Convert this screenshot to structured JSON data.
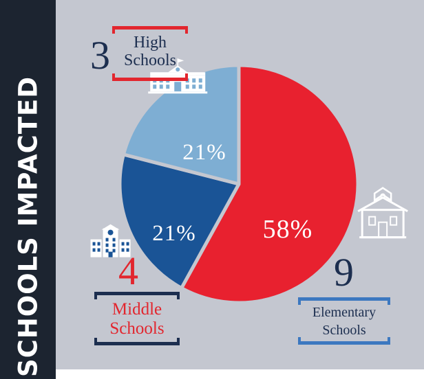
{
  "side_title": "SCHOOLS IMPACTED",
  "colors": {
    "elementary": "#e8212f",
    "middle": "#1a5496",
    "high": "#7eaed3",
    "navy": "#1c2e4f",
    "red_text": "#e2262e",
    "blue_bracket": "#3c78c0"
  },
  "chart_data": {
    "type": "pie",
    "slices": [
      {
        "label": "Elementary Schools",
        "count": "9",
        "value": 58,
        "percent_label": "58%",
        "color": "#e8212f",
        "icon": "schoolhouse-icon"
      },
      {
        "label": "Middle Schools",
        "count": "4",
        "value": 21,
        "percent_label": "21%",
        "color": "#1a5496",
        "icon": "middle-school-building-icon"
      },
      {
        "label": "High Schools",
        "count": "3",
        "value": 21,
        "percent_label": "21%",
        "color": "#7eaed3",
        "icon": "high-school-building-icon"
      }
    ]
  },
  "callouts": {
    "high": {
      "number": "3",
      "line1": "High",
      "line2": "Schools"
    },
    "middle": {
      "number": "4",
      "line1": "Middle",
      "line2": "Schools"
    },
    "elementary": {
      "number": "9",
      "line1": "Elementary",
      "line2": "Schools"
    }
  }
}
